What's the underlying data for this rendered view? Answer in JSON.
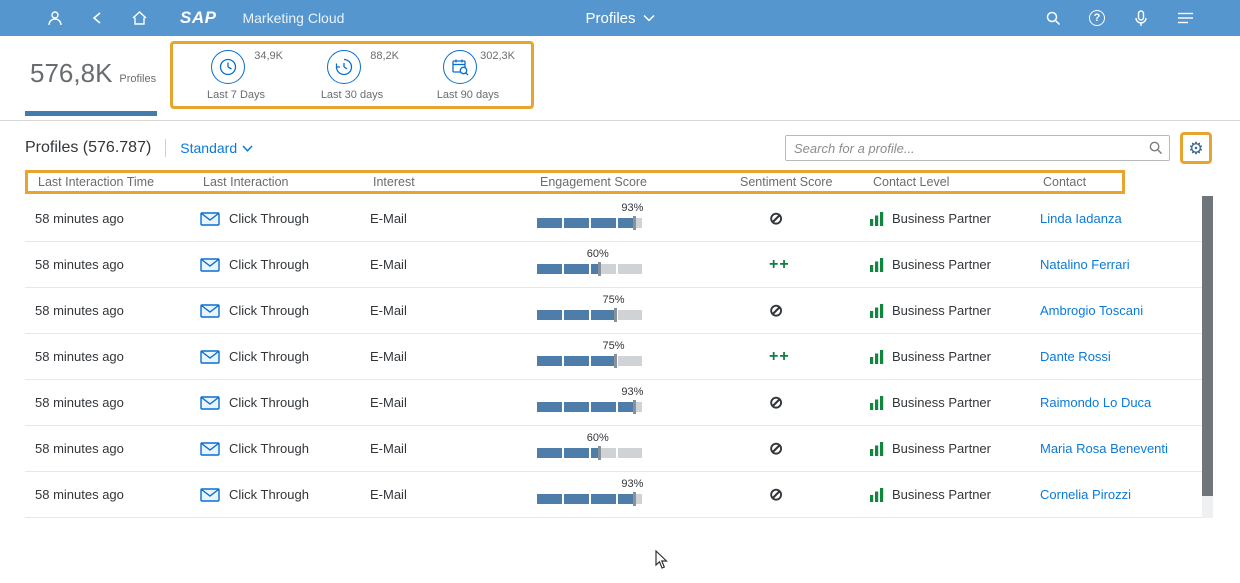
{
  "shell": {
    "brand": "SAP",
    "product": "Marketing Cloud",
    "page_title": "Profiles"
  },
  "kpi": {
    "total_value": "576,8K",
    "total_label": "Profiles",
    "tiles": [
      {
        "value": "34,9K",
        "label": "Last 7 Days",
        "icon": "clock-7-days-icon"
      },
      {
        "value": "88,2K",
        "label": "Last 30 days",
        "icon": "clock-history-icon"
      },
      {
        "value": "302,3K",
        "label": "Last 90 days",
        "icon": "calendar-search-icon"
      }
    ]
  },
  "table": {
    "title": "Profiles (576.787)",
    "view": "Standard",
    "search_placeholder": "Search for a profile...",
    "columns": [
      "Last Interaction Time",
      "Last Interaction",
      "Interest",
      "Engagement Score",
      "Sentiment Score",
      "Contact Level",
      "Contact"
    ],
    "icons": {
      "gear": "⚙"
    },
    "sentiment_glyphs": {
      "none": "⊘",
      "very_positive": "++"
    },
    "rows": [
      {
        "time": "58 minutes ago",
        "interaction": "Click Through",
        "interest": "E-Mail",
        "engagement": 93,
        "sentiment": "none",
        "contact_level": "Business Partner",
        "contact": "Linda Iadanza"
      },
      {
        "time": "58 minutes ago",
        "interaction": "Click Through",
        "interest": "E-Mail",
        "engagement": 60,
        "sentiment": "very_positive",
        "contact_level": "Business Partner",
        "contact": "Natalino Ferrari"
      },
      {
        "time": "58 minutes ago",
        "interaction": "Click Through",
        "interest": "E-Mail",
        "engagement": 75,
        "sentiment": "none",
        "contact_level": "Business Partner",
        "contact": "Ambrogio Toscani"
      },
      {
        "time": "58 minutes ago",
        "interaction": "Click Through",
        "interest": "E-Mail",
        "engagement": 75,
        "sentiment": "very_positive",
        "contact_level": "Business Partner",
        "contact": "Dante Rossi"
      },
      {
        "time": "58 minutes ago",
        "interaction": "Click Through",
        "interest": "E-Mail",
        "engagement": 93,
        "sentiment": "none",
        "contact_level": "Business Partner",
        "contact": "Raimondo Lo Duca"
      },
      {
        "time": "58 minutes ago",
        "interaction": "Click Through",
        "interest": "E-Mail",
        "engagement": 60,
        "sentiment": "none",
        "contact_level": "Business Partner",
        "contact": "Maria Rosa Beneventi"
      },
      {
        "time": "58 minutes ago",
        "interaction": "Click Through",
        "interest": "E-Mail",
        "engagement": 93,
        "sentiment": "none",
        "contact_level": "Business Partner",
        "contact": "Cornelia Pirozzi"
      }
    ]
  },
  "colors": {
    "shell_blue": "#5496cd",
    "highlight_accent": "#e7a52f",
    "link_blue": "#0a7ad9",
    "positive_green": "#107e3e",
    "engagement_fill": "#4e7daa"
  }
}
